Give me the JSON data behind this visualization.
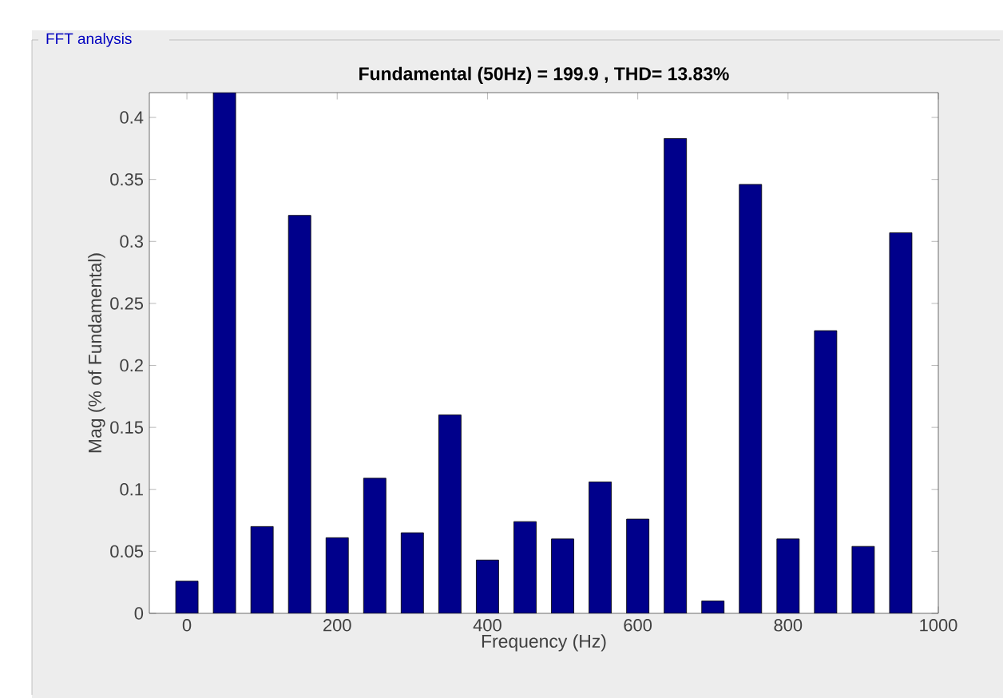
{
  "chart_data": {
    "type": "bar",
    "title": "Fundamental (50Hz) = 199.9 , THD= 13.83%",
    "xlabel": "Frequency (Hz)",
    "ylabel": "Mag (% of Fundamental)",
    "annotations": [
      "FFT analysis"
    ],
    "x": [
      0,
      50,
      100,
      150,
      200,
      250,
      300,
      350,
      400,
      450,
      500,
      550,
      600,
      650,
      700,
      750,
      800,
      850,
      900,
      950
    ],
    "values": [
      0.026,
      0.42,
      0.07,
      0.321,
      0.061,
      0.109,
      0.065,
      0.16,
      0.043,
      0.074,
      0.06,
      0.106,
      0.076,
      0.383,
      0.01,
      0.346,
      0.06,
      0.228,
      0.054,
      0.307
    ],
    "color": "#00008b",
    "xlim": [
      -50,
      1000
    ],
    "xticks": [
      0,
      200,
      400,
      600,
      800,
      1000
    ],
    "ylim": [
      0,
      0.42
    ],
    "yticks": [
      0,
      0.05,
      0.1,
      0.15,
      0.2,
      0.25,
      0.3,
      0.35,
      0.4
    ],
    "grid": false
  }
}
